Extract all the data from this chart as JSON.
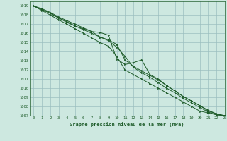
{
  "title": "Graphe pression niveau de la mer (hPa)",
  "background_color": "#cde8e0",
  "grid_color": "#9bbfbf",
  "line_color": "#1e5c2a",
  "xlim": [
    -0.5,
    23
  ],
  "ylim": [
    1007,
    1019.5
  ],
  "xticks": [
    0,
    1,
    2,
    3,
    4,
    5,
    6,
    7,
    8,
    9,
    10,
    11,
    12,
    13,
    14,
    15,
    16,
    17,
    18,
    19,
    20,
    21,
    22,
    23
  ],
  "yticks": [
    1007,
    1008,
    1009,
    1010,
    1011,
    1012,
    1013,
    1014,
    1015,
    1016,
    1017,
    1018,
    1019
  ],
  "series": [
    [
      1019.0,
      1018.7,
      1018.3,
      1017.8,
      1017.4,
      1017.0,
      1016.6,
      1016.2,
      1016.1,
      1015.8,
      1013.2,
      1012.6,
      1012.8,
      1013.1,
      1011.5,
      1011.0,
      1010.3,
      1009.7,
      1009.1,
      1008.6,
      1008.1,
      1007.5,
      1007.2,
      1007.0
    ],
    [
      1019.0,
      1018.6,
      1018.2,
      1017.7,
      1017.3,
      1016.8,
      1016.5,
      1016.2,
      1015.6,
      1015.3,
      1014.8,
      1013.1,
      1012.4,
      1011.9,
      1011.4,
      1010.9,
      1010.3,
      1009.7,
      1009.1,
      1008.6,
      1008.1,
      1007.6,
      1007.2,
      1007.0
    ],
    [
      1019.0,
      1018.6,
      1018.2,
      1017.7,
      1017.2,
      1016.8,
      1016.4,
      1016.0,
      1015.6,
      1015.2,
      1014.5,
      1013.5,
      1012.3,
      1011.7,
      1011.2,
      1010.6,
      1010.0,
      1009.5,
      1008.9,
      1008.4,
      1007.9,
      1007.4,
      1007.1,
      1007.0
    ],
    [
      1019.0,
      1018.5,
      1018.0,
      1017.5,
      1017.0,
      1016.5,
      1016.0,
      1015.5,
      1015.0,
      1014.6,
      1013.5,
      1012.0,
      1011.5,
      1011.0,
      1010.5,
      1010.0,
      1009.5,
      1009.0,
      1008.5,
      1008.0,
      1007.5,
      1007.3,
      1007.1,
      1007.0
    ]
  ]
}
